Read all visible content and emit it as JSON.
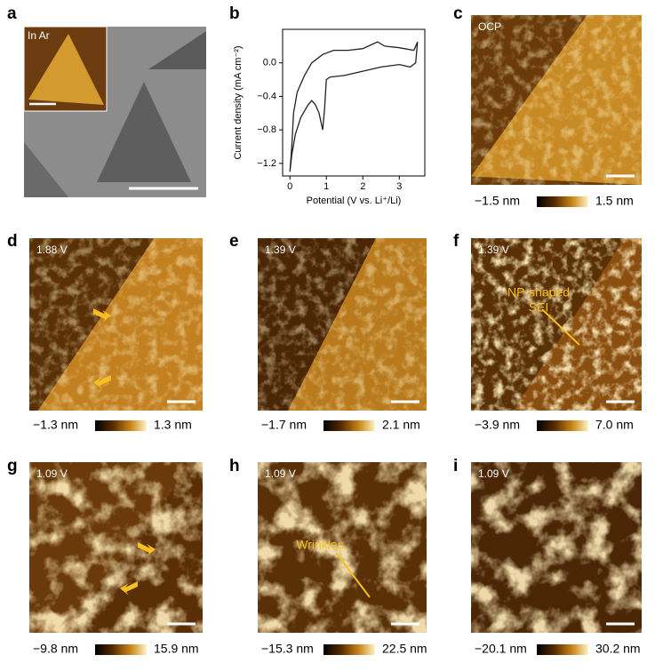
{
  "panels": [
    {
      "letter": "a",
      "tag": "In Ar"
    },
    {
      "letter": "b"
    },
    {
      "letter": "c",
      "tag": "OCP",
      "scale_min": "−1.5 nm",
      "scale_max": "1.5 nm"
    },
    {
      "letter": "d",
      "tag": "1.88 V",
      "scale_min": "−1.3 nm",
      "scale_max": "1.3 nm"
    },
    {
      "letter": "e",
      "tag": "1.39 V",
      "scale_min": "−1.7 nm",
      "scale_max": "2.1 nm"
    },
    {
      "letter": "f",
      "tag": "1.39 V",
      "scale_min": "−3.9 nm",
      "scale_max": "7.0 nm",
      "annotation": [
        "NP-shaped",
        "SEI"
      ]
    },
    {
      "letter": "g",
      "tag": "1.09 V",
      "scale_min": "−9.8 nm",
      "scale_max": "15.9 nm"
    },
    {
      "letter": "h",
      "tag": "1.09 V",
      "scale_min": "−15.3 nm",
      "scale_max": "22.5 nm",
      "annotation": [
        "Wrinkles"
      ]
    },
    {
      "letter": "i",
      "tag": "1.09 V",
      "scale_min": "−20.1 nm",
      "scale_max": "30.2 nm"
    }
  ],
  "chart_data": {
    "type": "line",
    "x_label": "Potential (V vs. Li⁺/Li)",
    "y_label": "Current density (mA cm⁻²)",
    "color": "#222222",
    "x": [
      3.5,
      3.45,
      3.3,
      3.0,
      2.5,
      2.0,
      1.5,
      1.1,
      1.0,
      0.95,
      0.9,
      0.8,
      0.7,
      0.6,
      0.5,
      0.3,
      0.15,
      0.05,
      0.0,
      0.05,
      0.1,
      0.2,
      0.4,
      0.6,
      0.9,
      1.2,
      1.6,
      2.0,
      2.4,
      2.6,
      3.0,
      3.4,
      3.5
    ],
    "values": [
      0.25,
      0.0,
      -0.05,
      -0.02,
      -0.05,
      -0.1,
      -0.15,
      -0.17,
      -0.2,
      -0.55,
      -0.8,
      -0.6,
      -0.5,
      -0.45,
      -0.5,
      -0.65,
      -0.85,
      -1.1,
      -1.3,
      -1.0,
      -0.6,
      -0.35,
      -0.15,
      0.0,
      0.1,
      0.15,
      0.15,
      0.17,
      0.25,
      0.2,
      0.18,
      0.15,
      0.25
    ],
    "xlim": [
      -0.2,
      3.7
    ],
    "xticks": [
      0,
      1,
      2,
      3
    ],
    "ylim": [
      -1.35,
      0.4
    ],
    "yticks": [
      {
        "value": -1.2,
        "label": "−1.2"
      },
      {
        "value": -0.8,
        "label": "−0.8"
      },
      {
        "value": -0.4,
        "label": "−0.4"
      },
      {
        "value": 0,
        "label": "0.0"
      }
    ]
  }
}
